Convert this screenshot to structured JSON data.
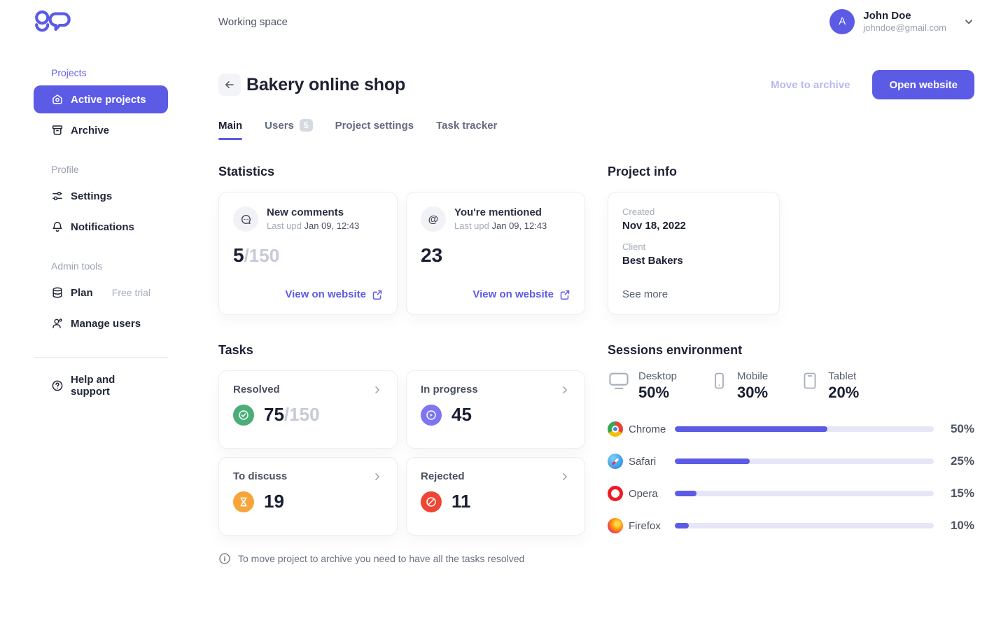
{
  "colors": {
    "accent": "#5C5BE5",
    "accent_light_text": "#B9B9F2",
    "bar_track": "#E6E6F8",
    "task_green": "#4BAE79",
    "task_purple": "#7D75F2",
    "task_orange": "#F7A53B",
    "task_red": "#EE4633"
  },
  "topbar": {
    "workspace_label": "Working space",
    "user": {
      "initial": "A",
      "name": "John Doe",
      "email": "johndoe@gmail.com"
    }
  },
  "sidebar": {
    "sections": [
      {
        "label": "Projects",
        "items": [
          {
            "label": "Active projects"
          },
          {
            "label": "Archive"
          }
        ]
      },
      {
        "label": "Profile",
        "items": [
          {
            "label": "Settings"
          },
          {
            "label": "Notifications"
          }
        ]
      },
      {
        "label": "Admin tools",
        "items": [
          {
            "label": "Plan",
            "badge": "Free trial"
          },
          {
            "label": "Manage users"
          }
        ]
      }
    ],
    "footer_item": {
      "label": "Help and support"
    }
  },
  "header": {
    "title": "Bakery online shop",
    "move_to_archive_label": "Move to archive",
    "open_website_label": "Open website"
  },
  "tabs": [
    {
      "label": "Main",
      "active": true
    },
    {
      "label": "Users",
      "badge": "5"
    },
    {
      "label": "Project settings"
    },
    {
      "label": "Task tracker"
    }
  ],
  "statistics": {
    "heading": "Statistics",
    "cards": [
      {
        "icon": "comment-bubble-icon",
        "title": "New comments",
        "updated_label": "Last upd",
        "updated_value": "Jan 09, 12:43",
        "value": "5",
        "total": "/150",
        "link_label": "View on website"
      },
      {
        "icon": "mention-at-icon",
        "title": "You're mentioned",
        "updated_label": "Last upd",
        "updated_value": "Jan 09, 12:43",
        "value": "23",
        "link_label": "View on website"
      }
    ]
  },
  "project_info": {
    "heading": "Project info",
    "fields": [
      {
        "label": "Created",
        "value": "Nov 18, 2022"
      },
      {
        "label": "Client",
        "value": "Best Bakers"
      }
    ],
    "see_more_label": "See more"
  },
  "tasks": {
    "heading": "Tasks",
    "cards": [
      {
        "label": "Resolved",
        "value": "75",
        "total": "/150",
        "icon": "check-circle-icon",
        "color": "#4BAE79"
      },
      {
        "label": "In progress",
        "value": "45",
        "icon": "play-circle-icon",
        "color": "#7D75F2"
      },
      {
        "label": "To discuss",
        "value": "19",
        "icon": "hourglass-icon",
        "color": "#F7A53B"
      },
      {
        "label": "Rejected",
        "value": "11",
        "icon": "blocked-circle-icon",
        "color": "#EE4633"
      }
    ],
    "note": "To move project to archive you need to have all the tasks resolved"
  },
  "sessions": {
    "heading": "Sessions environment",
    "devices": [
      {
        "label": "Desktop",
        "value": "50%",
        "icon": "desktop-icon"
      },
      {
        "label": "Mobile",
        "value": "30%",
        "icon": "mobile-icon"
      },
      {
        "label": "Tablet",
        "value": "20%",
        "icon": "tablet-icon"
      }
    ],
    "browsers": [
      {
        "label": "Chrome",
        "value": "50%",
        "fill_percent": 59
      },
      {
        "label": "Safari",
        "value": "25%",
        "fill_percent": 29
      },
      {
        "label": "Opera",
        "value": "15%",
        "fill_percent": 8.5
      },
      {
        "label": "Firefox",
        "value": "10%",
        "fill_percent": 5.5
      }
    ]
  },
  "chart_data": {
    "type": "bar",
    "title": "Sessions environment",
    "categories": [
      "Chrome",
      "Safari",
      "Opera",
      "Firefox"
    ],
    "values": [
      50,
      25,
      15,
      10
    ],
    "value_unit": "%",
    "devices": {
      "Desktop": 50,
      "Mobile": 30,
      "Tablet": 20
    },
    "orientation": "horizontal",
    "xlim": [
      0,
      100
    ],
    "grid": false,
    "legend": false
  }
}
